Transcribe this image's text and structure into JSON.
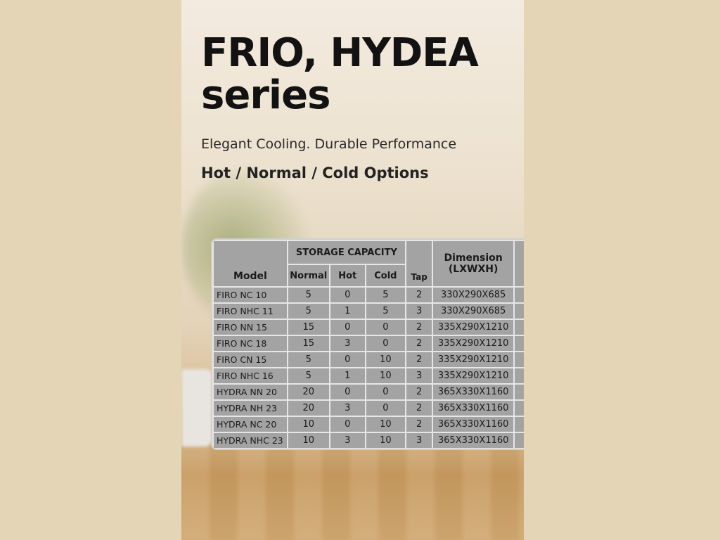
{
  "title_line1": "FRIO, HYDEA",
  "title_line2": "series",
  "subtitle": "Elegant Cooling. Durable Performance",
  "options": "Hot / Normal / Cold Options",
  "table": {
    "headers": {
      "model": "Model",
      "storage": "STORAGE CAPACITY",
      "normal": "Normal",
      "hot": "Hot",
      "cold": "Cold",
      "tap": "Tap",
      "dimension": "Dimension (LXWXH)"
    },
    "rows": [
      [
        "FIRO NC 10",
        "5",
        "0",
        "5",
        "2",
        "330X290X685"
      ],
      [
        "FIRO NHC 11",
        "5",
        "1",
        "5",
        "3",
        "330X290X685"
      ],
      [
        "FIRO NN 15",
        "15",
        "0",
        "0",
        "2",
        "335X290X1210"
      ],
      [
        "FIRO NC 18",
        "15",
        "3",
        "0",
        "2",
        "335X290X1210"
      ],
      [
        "FIRO CN 15",
        "5",
        "0",
        "10",
        "2",
        "335X290X1210"
      ],
      [
        "FIRO NHC 16",
        "5",
        "1",
        "10",
        "3",
        "335X290X1210"
      ],
      [
        "HYDRA NN 20",
        "20",
        "0",
        "0",
        "2",
        "365X330X1160"
      ],
      [
        "HYDRA NH 23",
        "20",
        "3",
        "0",
        "2",
        "365X330X1160"
      ],
      [
        "HYDRA NC 20",
        "10",
        "0",
        "10",
        "2",
        "365X330X1160"
      ],
      [
        "HYDRA NHC 23",
        "10",
        "3",
        "10",
        "3",
        "365X330X1160"
      ]
    ]
  }
}
